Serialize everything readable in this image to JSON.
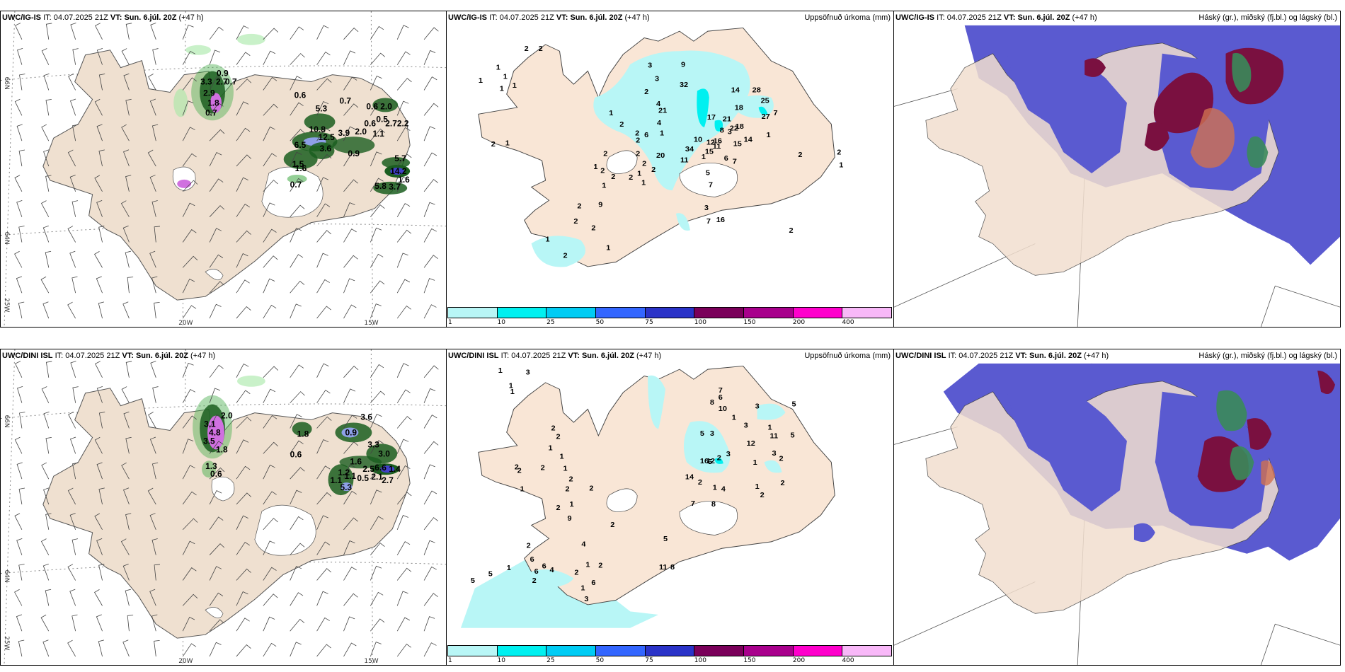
{
  "panels": [
    {
      "id": "top-wind",
      "model": "UWC/IG-IS",
      "it_label": "IT:",
      "it_value": "04.07.2025 21Z",
      "vt_label": "VT:",
      "vt_value": "Sun. 6.júl. 20Z",
      "lead": "(+47 h)",
      "axis": {
        "lat_top": "66N",
        "lat_mid": "64N",
        "lon_left": "25W",
        "lon_20": "20W",
        "lon_15": "15W"
      },
      "values": [
        "0.9",
        "3.3",
        "2.7",
        "0.7",
        "2.9",
        "1.8",
        "0.7",
        "0.6",
        "5.3",
        "0.7",
        "0.6",
        "2.0",
        "10.8",
        "12.5",
        "3.9",
        "2.0",
        "1.1",
        "0.6",
        "0.5",
        "2.72.2",
        "6.5",
        "3.6",
        "0.9",
        "5.7",
        "14.2",
        "1.6",
        "1.5",
        "1.6",
        "5.8",
        "3.7",
        "0.7"
      ]
    },
    {
      "id": "top-precip",
      "model": "UWC/IG-IS",
      "it_label": "IT:",
      "it_value": "04.07.2025 21Z",
      "vt_label": "VT:",
      "vt_value": "Sun. 6.júl. 20Z",
      "lead": "(+47 h)",
      "right_title": "Uppsöfnuð úrkoma (mm)",
      "axis": {
        "lat_top": "66N",
        "lat_mid": "64N"
      },
      "values": [
        "2",
        "2",
        "1",
        "1",
        "1",
        "1",
        "1",
        "3",
        "3",
        "2",
        "4",
        "4",
        "1",
        "2",
        "2",
        "2",
        "6",
        "1",
        "2",
        "2",
        "1",
        "2",
        "2",
        "2",
        "2",
        "20",
        "2",
        "1",
        "1",
        "1",
        "2",
        "2",
        "2",
        "1",
        "2",
        "1",
        "2",
        "1",
        "9",
        "9",
        "32",
        "21",
        "34",
        "10",
        "16",
        "11",
        "1",
        "3",
        "28",
        "14",
        "25",
        "18",
        "21",
        "17",
        "18",
        "27",
        "7",
        "8",
        "22",
        "12",
        "14",
        "15",
        "11",
        "15",
        "6",
        "7",
        "1",
        "5",
        "7",
        "3",
        "7",
        "16",
        "2",
        "1",
        "2",
        "2"
      ]
    },
    {
      "id": "top-cloud",
      "model": "UWC/IG-IS",
      "it_label": "IT:",
      "it_value": "04.07.2025 21Z",
      "vt_label": "VT:",
      "vt_value": "Sun. 6.júl. 20Z",
      "lead": "(+47 h)",
      "right_title": "Háský (gr.), miðský (fj.bl.) og lágský (bl.)"
    },
    {
      "id": "bottom-wind",
      "model": "UWC/DINI ISL",
      "it_label": "IT:",
      "it_value": "04.07.2025 21Z",
      "vt_label": "VT:",
      "vt_value": "Sun. 6.júl. 20Z",
      "lead": "(+47 h)",
      "axis": {
        "lat_top": "66N",
        "lat_mid": "64N",
        "lon_left": "25W",
        "lon_20": "20W",
        "lon_15": "15W"
      },
      "values": [
        "2.0",
        "3.1",
        "4.8",
        "3.5",
        "1.8",
        "1.3",
        "0.6",
        "1.8",
        "0.6",
        "3.6",
        "0.9",
        "3.3",
        "3.0",
        "1.6",
        "2.5",
        "6.6",
        "1.4",
        "1.2",
        "1.1",
        "1.1",
        "5.3",
        "0.5",
        "2.1",
        "2.7"
      ]
    },
    {
      "id": "bottom-precip",
      "model": "UWC/DINI ISL",
      "it_label": "IT:",
      "it_value": "04.07.2025 21Z",
      "vt_label": "VT:",
      "vt_value": "Sun. 6.júl. 20Z",
      "lead": "(+47 h)",
      "right_title": "Uppsöfnuð úrkoma (mm)",
      "axis": {
        "lat_top": "66N",
        "lat_mid": "64N"
      },
      "values": [
        "3",
        "1",
        "1",
        "1",
        "7",
        "6",
        "8",
        "10",
        "5",
        "3",
        "3",
        "2",
        "2",
        "2",
        "1",
        "1",
        "2",
        "2",
        "2",
        "1",
        "2",
        "2",
        "1",
        "2",
        "1",
        "2",
        "9",
        "4",
        "2",
        "6",
        "6",
        "4",
        "6",
        "5",
        "5",
        "2",
        "1",
        "2",
        "1",
        "2",
        "2",
        "1",
        "6",
        "3",
        "5",
        "11",
        "8",
        "16",
        "14",
        "5",
        "1",
        "2",
        "8",
        "7",
        "1",
        "12",
        "4",
        "1",
        "3",
        "5",
        "3",
        "11",
        "12",
        "5",
        "3",
        "1",
        "2",
        "2",
        "1",
        "2"
      ]
    },
    {
      "id": "bottom-cloud",
      "model": "UWC/DINI ISL",
      "it_label": "IT:",
      "it_value": "04.07.2025 21Z",
      "vt_label": "VT:",
      "vt_value": "Sun. 6.júl. 20Z",
      "lead": "(+47 h)",
      "right_title": "Háský (gr.), miðský (fj.bl.) og lágský (bl.)"
    }
  ],
  "colorbar": {
    "ticks": [
      "1",
      "10",
      "25",
      "50",
      "75",
      "100",
      "150",
      "200",
      "400"
    ],
    "colors": [
      "#b8f6f6",
      "#00f0f0",
      "#00ccf4",
      "#3366ff",
      "#2a33c8",
      "#7a005a",
      "#a8008c",
      "#ff00cc",
      "#f8b8f8"
    ]
  },
  "colors": {
    "land": "#f4e4d4",
    "sea": "#ffffff",
    "precip_land": "#f9e6d6",
    "low_cloud": "#5a5ad0",
    "mid_cloud": "#7a1040",
    "high_cloud": "#3a8a5a",
    "wind_green": "#2e7d32"
  }
}
